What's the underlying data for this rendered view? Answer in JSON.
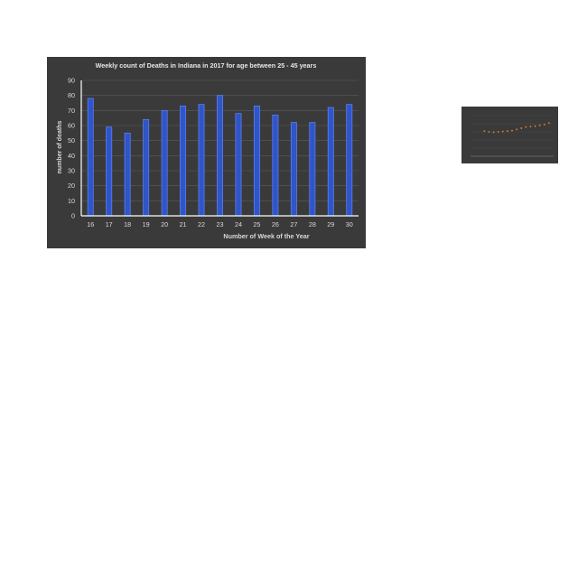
{
  "chart_data": [
    {
      "type": "bar",
      "title": "Weekly count of Deaths in Indiana in 2017 for age between 25 - 45 years",
      "xlabel": "Number of Week of the Year",
      "ylabel": "number of deaths",
      "categories": [
        "16",
        "17",
        "18",
        "19",
        "20",
        "21",
        "22",
        "23",
        "24",
        "25",
        "26",
        "27",
        "28",
        "29",
        "30"
      ],
      "values": [
        78,
        59,
        55,
        64,
        70,
        73,
        74,
        80,
        68,
        73,
        67,
        62,
        62,
        72,
        74
      ],
      "ylim": [
        0,
        90
      ],
      "yticks": [
        0,
        10,
        20,
        30,
        40,
        50,
        60,
        70,
        80,
        90
      ],
      "grid": true,
      "bar_color": "#2f55c8",
      "bar_edge_color": "#5b7ff0",
      "background": "#3a3a3a",
      "text_color": "#d9d9d9"
    },
    {
      "type": "scatter",
      "title": "",
      "xlabel": "",
      "ylabel": "",
      "x": [
        1,
        2,
        3,
        4,
        5,
        6,
        7,
        8,
        9,
        10,
        11,
        12,
        13,
        14,
        15
      ],
      "y": [
        62,
        60,
        59,
        60,
        61,
        62,
        63,
        66,
        69,
        72,
        73,
        74,
        76,
        78,
        82
      ],
      "ylim": [
        0,
        100
      ],
      "grid": true,
      "marker_color": "#e8862a",
      "background": "#3a3a3a"
    }
  ]
}
